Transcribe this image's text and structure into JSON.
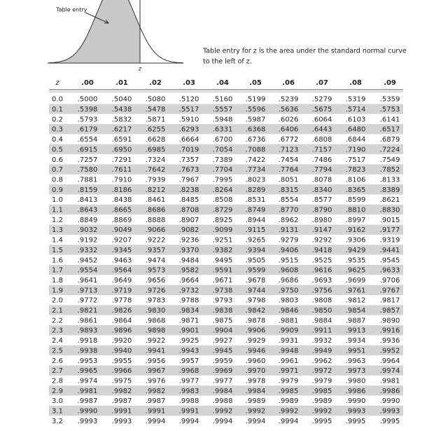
{
  "figure": {
    "label": "Table entry",
    "axis_label": "z"
  },
  "caption": [
    "Table entry for z is the area under the standard normal curve",
    "to the left of z."
  ],
  "table": {
    "header": [
      "z",
      ".00",
      ".01",
      ".02",
      ".03",
      ".04",
      ".05",
      ".06",
      ".07",
      ".08",
      ".09"
    ],
    "rows": [
      [
        "0.0",
        ".5000",
        ".5040",
        ".5080",
        ".5120",
        ".5160",
        ".5199",
        ".5239",
        ".5279",
        ".5319",
        ".5359"
      ],
      [
        "0.1",
        ".5398",
        ".5438",
        ".5478",
        ".5517",
        ".5557",
        ".5596",
        ".5636",
        ".5675",
        ".5714",
        ".5753"
      ],
      [
        "0.2",
        ".5793",
        ".5832",
        ".5871",
        ".5910",
        ".5948",
        ".5987",
        ".6026",
        ".6064",
        ".6103",
        ".6141"
      ],
      [
        "0.3",
        ".6179",
        ".6217",
        ".6255",
        ".6293",
        ".6331",
        ".6368",
        ".6406",
        ".6443",
        ".6480",
        ".6517"
      ],
      [
        "0.4",
        ".6554",
        ".6591",
        ".6628",
        ".6664",
        ".6700",
        ".6736",
        ".6772",
        ".6808",
        ".6844",
        ".6879"
      ],
      [
        "0.5",
        ".6915",
        ".6950",
        ".6985",
        ".7019",
        ".7054",
        ".7088",
        ".7123",
        ".7157",
        ".7190",
        ".7224"
      ],
      [
        "0.6",
        ".7257",
        ".7291",
        ".7324",
        ".7357",
        ".7389",
        ".7422",
        ".7454",
        ".7486",
        ".7517",
        ".7549"
      ],
      [
        "0.7",
        ".7580",
        ".7611",
        ".7642",
        ".7673",
        ".7704",
        ".7734",
        ".7764",
        ".7794",
        ".7823",
        ".7852"
      ],
      [
        "0.8",
        ".7881",
        ".7910",
        ".7939",
        ".7967",
        ".7995",
        ".8023",
        ".8051",
        ".8078",
        ".8106",
        ".8133"
      ],
      [
        "0.9",
        ".8159",
        ".8186",
        ".8212",
        ".8238",
        ".8264",
        ".8289",
        ".8315",
        ".8340",
        ".8365",
        ".8389"
      ],
      [
        "1.0",
        ".8413",
        ".8438",
        ".8461",
        ".8485",
        ".8508",
        ".8531",
        ".8554",
        ".8577",
        ".8599",
        ".8621"
      ],
      [
        "1.1",
        ".8643",
        ".8665",
        ".8686",
        ".8708",
        ".8729",
        ".8749",
        ".8770",
        ".8790",
        ".8810",
        ".8830"
      ],
      [
        "1.2",
        ".8849",
        ".8869",
        ".8888",
        ".8907",
        ".8925",
        ".8944",
        ".8962",
        ".8980",
        ".8997",
        ".9015"
      ],
      [
        "1.3",
        ".9032",
        ".9049",
        ".9066",
        ".9082",
        ".9099",
        ".9115",
        ".9131",
        ".9147",
        ".9162",
        ".9177"
      ],
      [
        "1.4",
        ".9192",
        ".9207",
        ".9222",
        ".9236",
        ".9251",
        ".9265",
        ".9279",
        ".9292",
        ".9306",
        ".9319"
      ],
      [
        "1.5",
        ".9332",
        ".9345",
        ".9357",
        ".9370",
        ".9382",
        ".9394",
        ".9406",
        ".9418",
        ".9429",
        ".9441"
      ],
      [
        "1.6",
        ".9452",
        ".9463",
        ".9474",
        ".9484",
        ".9495",
        ".9505",
        ".9515",
        ".9525",
        ".9535",
        ".9545"
      ],
      [
        "1.7",
        ".9554",
        ".9564",
        ".9573",
        ".9582",
        ".9591",
        ".9599",
        ".9608",
        ".9616",
        ".9625",
        ".9633"
      ],
      [
        "1.8",
        ".9641",
        ".9649",
        ".9656",
        ".9664",
        ".9671",
        ".9678",
        ".9686",
        ".9693",
        ".9699",
        ".9706"
      ],
      [
        "1.9",
        ".9713",
        ".9719",
        ".9726",
        ".9732",
        ".9738",
        ".9744",
        ".9750",
        ".9756",
        ".9761",
        ".9767"
      ],
      [
        "2.0",
        ".9772",
        ".9778",
        ".9783",
        ".9788",
        ".9793",
        ".9798",
        ".9803",
        ".9808",
        ".9812",
        ".9817"
      ],
      [
        "2.1",
        ".9821",
        ".9826",
        ".9830",
        ".9834",
        ".9838",
        ".9842",
        ".9846",
        ".9850",
        ".9854",
        ".9857"
      ],
      [
        "2.2",
        ".9861",
        ".9864",
        ".9868",
        ".9871",
        ".9875",
        ".9878",
        ".9881",
        ".9884",
        ".9887",
        ".9890"
      ],
      [
        "2.3",
        ".9893",
        ".9896",
        ".9898",
        ".9901",
        ".9904",
        ".9906",
        ".9909",
        ".9911",
        ".9913",
        ".9916"
      ],
      [
        "2.4",
        ".9918",
        ".9920",
        ".9922",
        ".9925",
        ".9927",
        ".9929",
        ".9931",
        ".9932",
        ".9934",
        ".9936"
      ],
      [
        "2.5",
        ".9938",
        ".9940",
        ".9941",
        ".9943",
        ".9945",
        ".9946",
        ".9948",
        ".9949",
        ".9951",
        ".9952"
      ],
      [
        "2.6",
        ".9953",
        ".9955",
        ".9956",
        ".9957",
        ".9959",
        ".9960",
        ".9961",
        ".9962",
        ".9963",
        ".9964"
      ],
      [
        "2.7",
        ".9965",
        ".9966",
        ".9967",
        ".9968",
        ".9969",
        ".9970",
        ".9971",
        ".9972",
        ".9973",
        ".9974"
      ],
      [
        "2.8",
        ".9974",
        ".9975",
        ".9976",
        ".9977",
        ".9977",
        ".9978",
        ".9979",
        ".9979",
        ".9980",
        ".9981"
      ],
      [
        "2.9",
        ".9981",
        ".9982",
        ".9982",
        ".9983",
        ".9984",
        ".9984",
        ".9985",
        ".9985",
        ".9986",
        ".9986"
      ],
      [
        "3.0",
        ".9987",
        ".9987",
        ".9987",
        ".9988",
        ".9988",
        ".9989",
        ".9989",
        ".9989",
        ".9990",
        ".9990"
      ],
      [
        "3.1",
        ".9990",
        ".9991",
        ".9991",
        ".9991",
        ".9992",
        ".9992",
        ".9992",
        ".9992",
        ".9993",
        ".9993"
      ],
      [
        "3.2",
        ".9993",
        ".9993",
        ".9994",
        ".9994",
        ".9994",
        ".9994",
        ".9994",
        ".9995",
        ".9995",
        ".9995"
      ]
    ]
  }
}
